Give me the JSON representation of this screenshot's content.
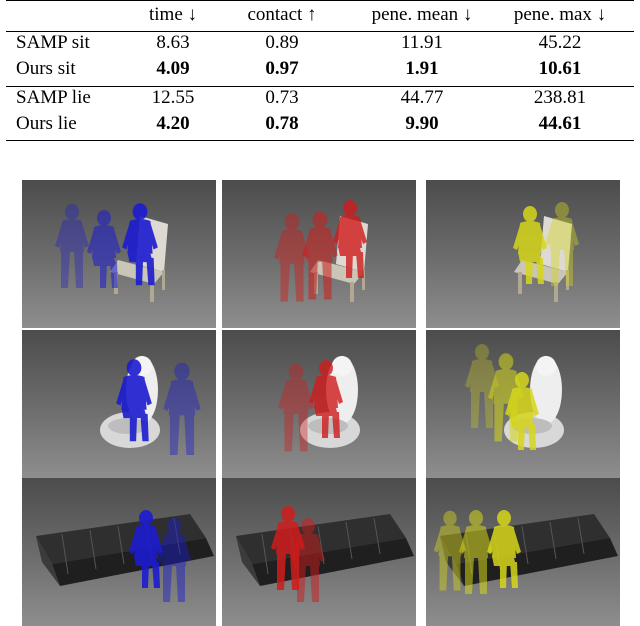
{
  "table": {
    "headers": [
      "",
      "time ↓",
      "contact ↑",
      "pene. mean ↓",
      "pene. max ↓"
    ],
    "rows": [
      {
        "label": "SAMP sit",
        "values": [
          "8.63",
          "0.89",
          "11.91",
          "45.22"
        ],
        "bold": false
      },
      {
        "label": "Ours sit",
        "values": [
          "4.09",
          "0.97",
          "1.91",
          "10.61"
        ],
        "bold": true
      },
      {
        "label": "SAMP lie",
        "values": [
          "12.55",
          "0.73",
          "44.77",
          "238.81"
        ],
        "bold": false
      },
      {
        "label": "Ours lie",
        "values": [
          "4.20",
          "0.78",
          "9.90",
          "44.61"
        ],
        "bold": true
      }
    ]
  },
  "renders": {
    "colors": {
      "blue": "#1c1cd0",
      "red": "#d01c1c",
      "yellow": "#d6d61a"
    },
    "panels": [
      {
        "row": "chair",
        "body_color": "blue",
        "object": "armchair-icon"
      },
      {
        "row": "chair",
        "body_color": "red",
        "object": "armchair-icon"
      },
      {
        "row": "chair",
        "body_color": "yellow",
        "object": "armchair-icon"
      },
      {
        "row": "egg-chair",
        "body_color": "blue",
        "object": "egg-chair-icon"
      },
      {
        "row": "egg-chair",
        "body_color": "red",
        "object": "egg-chair-icon"
      },
      {
        "row": "egg-chair",
        "body_color": "yellow",
        "object": "egg-chair-icon"
      },
      {
        "row": "sofa",
        "body_color": "blue",
        "object": "sofa-icon"
      },
      {
        "row": "sofa",
        "body_color": "red",
        "object": "sofa-icon"
      },
      {
        "row": "sofa",
        "body_color": "yellow",
        "object": "sofa-icon"
      }
    ]
  }
}
